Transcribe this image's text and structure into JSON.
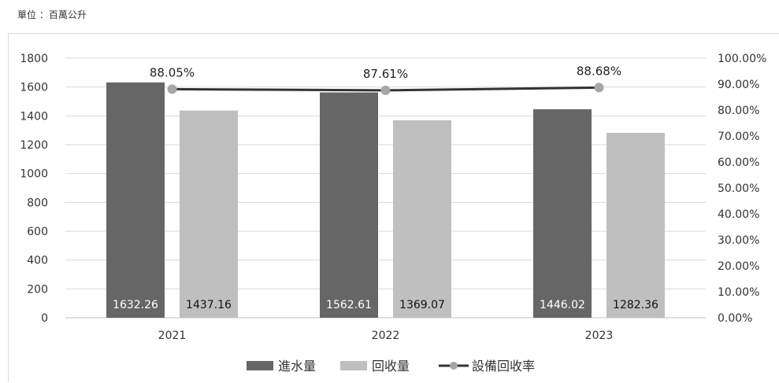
{
  "unit_label": "單位 ：百萬公升",
  "chart_data": {
    "type": "bar",
    "categories": [
      "2021",
      "2022",
      "2023"
    ],
    "series": [
      {
        "name": "進水量",
        "kind": "bar",
        "axis": "left",
        "color": "#666666",
        "label_color": "#ffffff",
        "values": [
          1632.26,
          1562.61,
          1446.02
        ],
        "labels": [
          "1632.26",
          "1562.61",
          "1446.02"
        ]
      },
      {
        "name": "回收量",
        "kind": "bar",
        "axis": "left",
        "color": "#bfbfbf",
        "label_color": "#111111",
        "values": [
          1437.16,
          1369.07,
          1282.36
        ],
        "labels": [
          "1437.16",
          "1369.07",
          "1282.36"
        ]
      },
      {
        "name": "設備回收率",
        "kind": "line",
        "axis": "right",
        "color": "#333333",
        "marker_color": "#a6a6a6",
        "values": [
          88.05,
          87.61,
          88.68
        ],
        "labels": [
          "88.05%",
          "87.61%",
          "88.68%"
        ]
      }
    ],
    "y_left": {
      "min": 0,
      "max": 1800,
      "ticks": [
        "0",
        "200",
        "400",
        "600",
        "800",
        "1000",
        "1200",
        "1400",
        "1600",
        "1800"
      ]
    },
    "y_right": {
      "min": 0,
      "max": 100,
      "ticks": [
        "0.00%",
        "10.00%",
        "20.00%",
        "30.00%",
        "40.00%",
        "50.00%",
        "60.00%",
        "70.00%",
        "80.00%",
        "90.00%",
        "100.00%"
      ]
    },
    "title": "",
    "xlabel": "",
    "ylabel": "",
    "grid": true,
    "legend_position": "bottom"
  }
}
